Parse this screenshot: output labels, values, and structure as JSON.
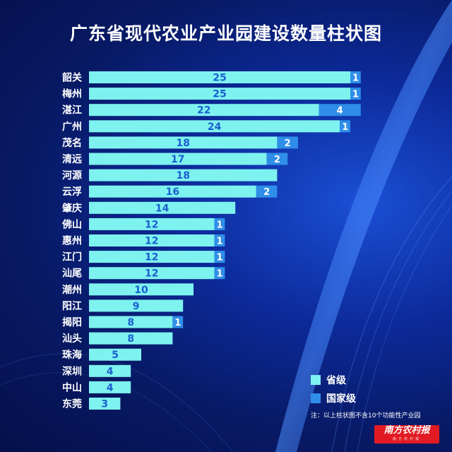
{
  "title": "广东省现代农业产业园建设数量柱状图",
  "chart_data": {
    "type": "bar",
    "orientation": "horizontal",
    "stacked": true,
    "categories": [
      "韶关",
      "梅州",
      "湛江",
      "广州",
      "茂名",
      "清远",
      "河源",
      "云浮",
      "肇庆",
      "佛山",
      "惠州",
      "江门",
      "汕尾",
      "潮州",
      "阳江",
      "揭阳",
      "汕头",
      "珠海",
      "深圳",
      "中山",
      "东莞"
    ],
    "series": [
      {
        "name": "省级",
        "color": "#7ef2ef",
        "values": [
          25,
          25,
          22,
          24,
          18,
          17,
          18,
          16,
          14,
          12,
          12,
          12,
          12,
          10,
          9,
          8,
          8,
          5,
          4,
          4,
          3
        ]
      },
      {
        "name": "国家级",
        "color": "#2f8ee8",
        "values": [
          1,
          1,
          4,
          1,
          2,
          2,
          0,
          2,
          0,
          1,
          1,
          1,
          1,
          0,
          0,
          1,
          0,
          0,
          0,
          0,
          0
        ]
      }
    ],
    "xlim": [
      0,
      26
    ],
    "legend_position": "bottom-right",
    "grid": false
  },
  "legend": [
    {
      "label": "省级",
      "color": "#7ef2ef"
    },
    {
      "label": "国家级",
      "color": "#2f8ee8"
    }
  ],
  "note": "注：以上柱状图不含10个功能性产业园",
  "logo": {
    "main": "南方农村报",
    "sub": "南方农村报"
  },
  "colors": {
    "value_text": "#1a5fd0",
    "label_text": "#ffffff"
  }
}
